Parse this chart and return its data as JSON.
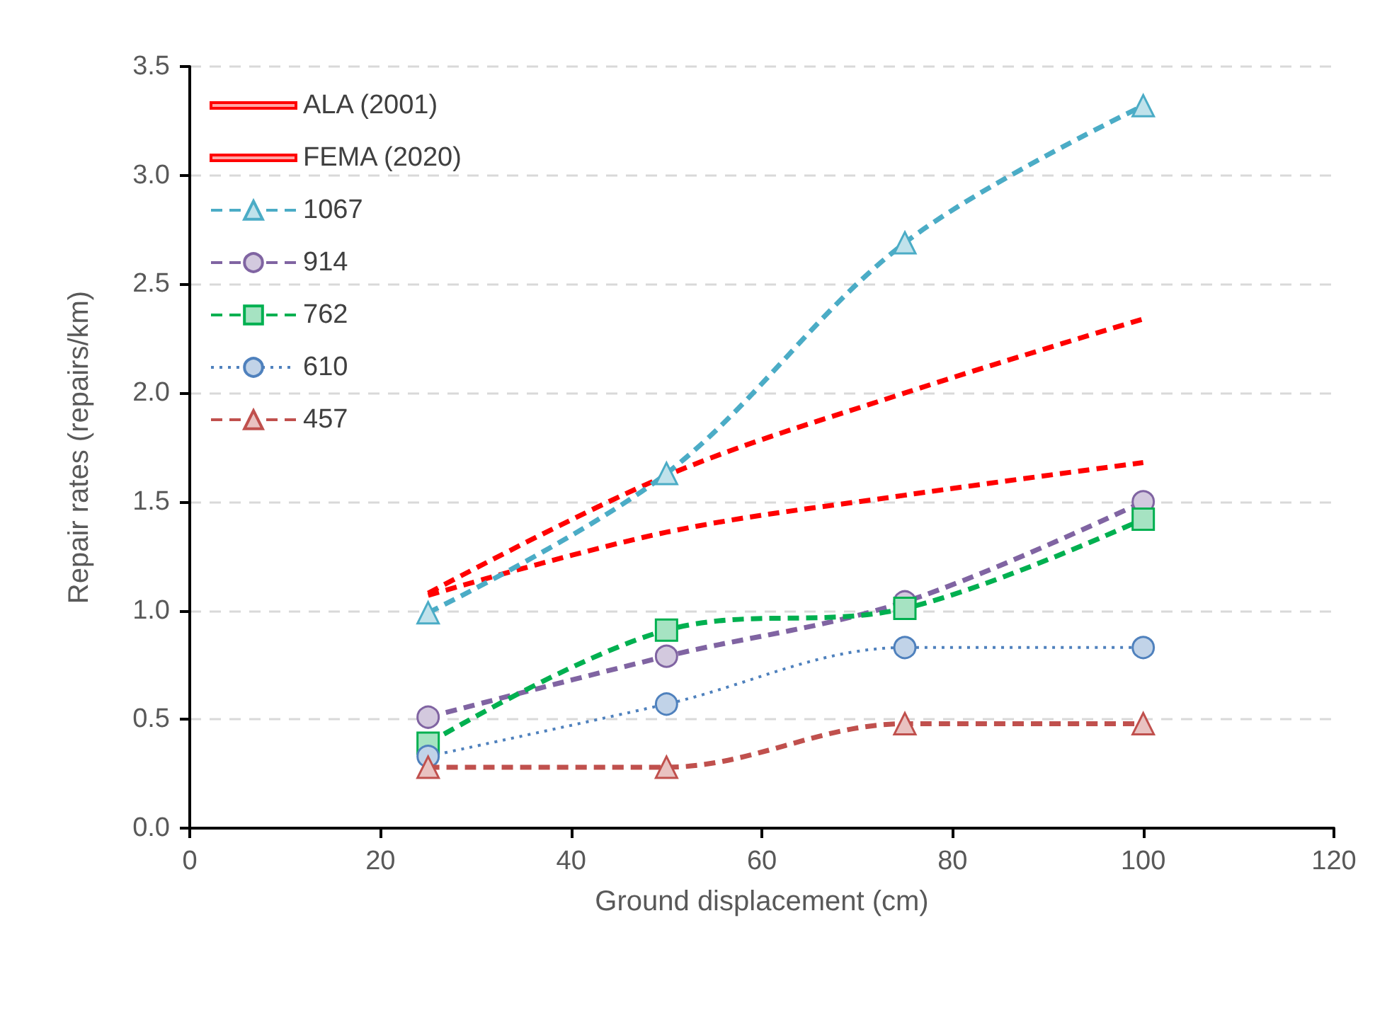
{
  "chart_data": {
    "type": "line",
    "xlabel": "Ground displacement (cm)",
    "ylabel": "Repair rates (repairs/km)",
    "x": [
      25,
      50,
      75,
      100
    ],
    "xlim": [
      0,
      120
    ],
    "xticks": [
      0,
      20,
      40,
      60,
      80,
      100,
      120
    ],
    "ylim": [
      0,
      3.5
    ],
    "yticks": [
      {
        "value": 0,
        "label": "0.0"
      },
      0.5,
      {
        "value": 1,
        "label": "1.0"
      },
      1.5,
      {
        "value": 2,
        "label": "2.0"
      },
      2.5,
      {
        "value": 3,
        "label": "3.0"
      },
      3.5
    ],
    "grid": "y",
    "legend": "top left",
    "series": [
      {
        "name": "ALA (2001)",
        "color": "#ff0000",
        "values": [
          1.07,
          1.36,
          1.53,
          1.68
        ],
        "marker": "none",
        "line_style": "dashed"
      },
      {
        "name": "FEMA (2020)",
        "color": "#ff0000",
        "values": [
          1.08,
          1.62,
          2.0,
          2.34
        ],
        "marker": "none",
        "line_style": "dashed"
      },
      {
        "name": "1067",
        "color": "#4bacc6",
        "values": [
          0.99,
          1.63,
          2.69,
          3.32
        ],
        "marker": "triangle",
        "line_style": "dashed"
      },
      {
        "name": "914",
        "color": "#8064a2",
        "values": [
          0.51,
          0.79,
          1.04,
          1.5
        ],
        "marker": "circle",
        "line_style": "dashed"
      },
      {
        "name": "762",
        "color": "#00b050",
        "values": [
          0.39,
          0.91,
          1.01,
          1.42
        ],
        "marker": "square",
        "line_style": "dashed"
      },
      {
        "name": "610",
        "color": "#4f81bd",
        "values": [
          0.33,
          0.57,
          0.83,
          0.83
        ],
        "marker": "circle",
        "line_style": "dotted"
      },
      {
        "name": "457",
        "color": "#c0504d",
        "values": [
          0.28,
          0.28,
          0.48,
          0.48
        ],
        "marker": "triangle",
        "line_style": "dashed"
      }
    ]
  }
}
